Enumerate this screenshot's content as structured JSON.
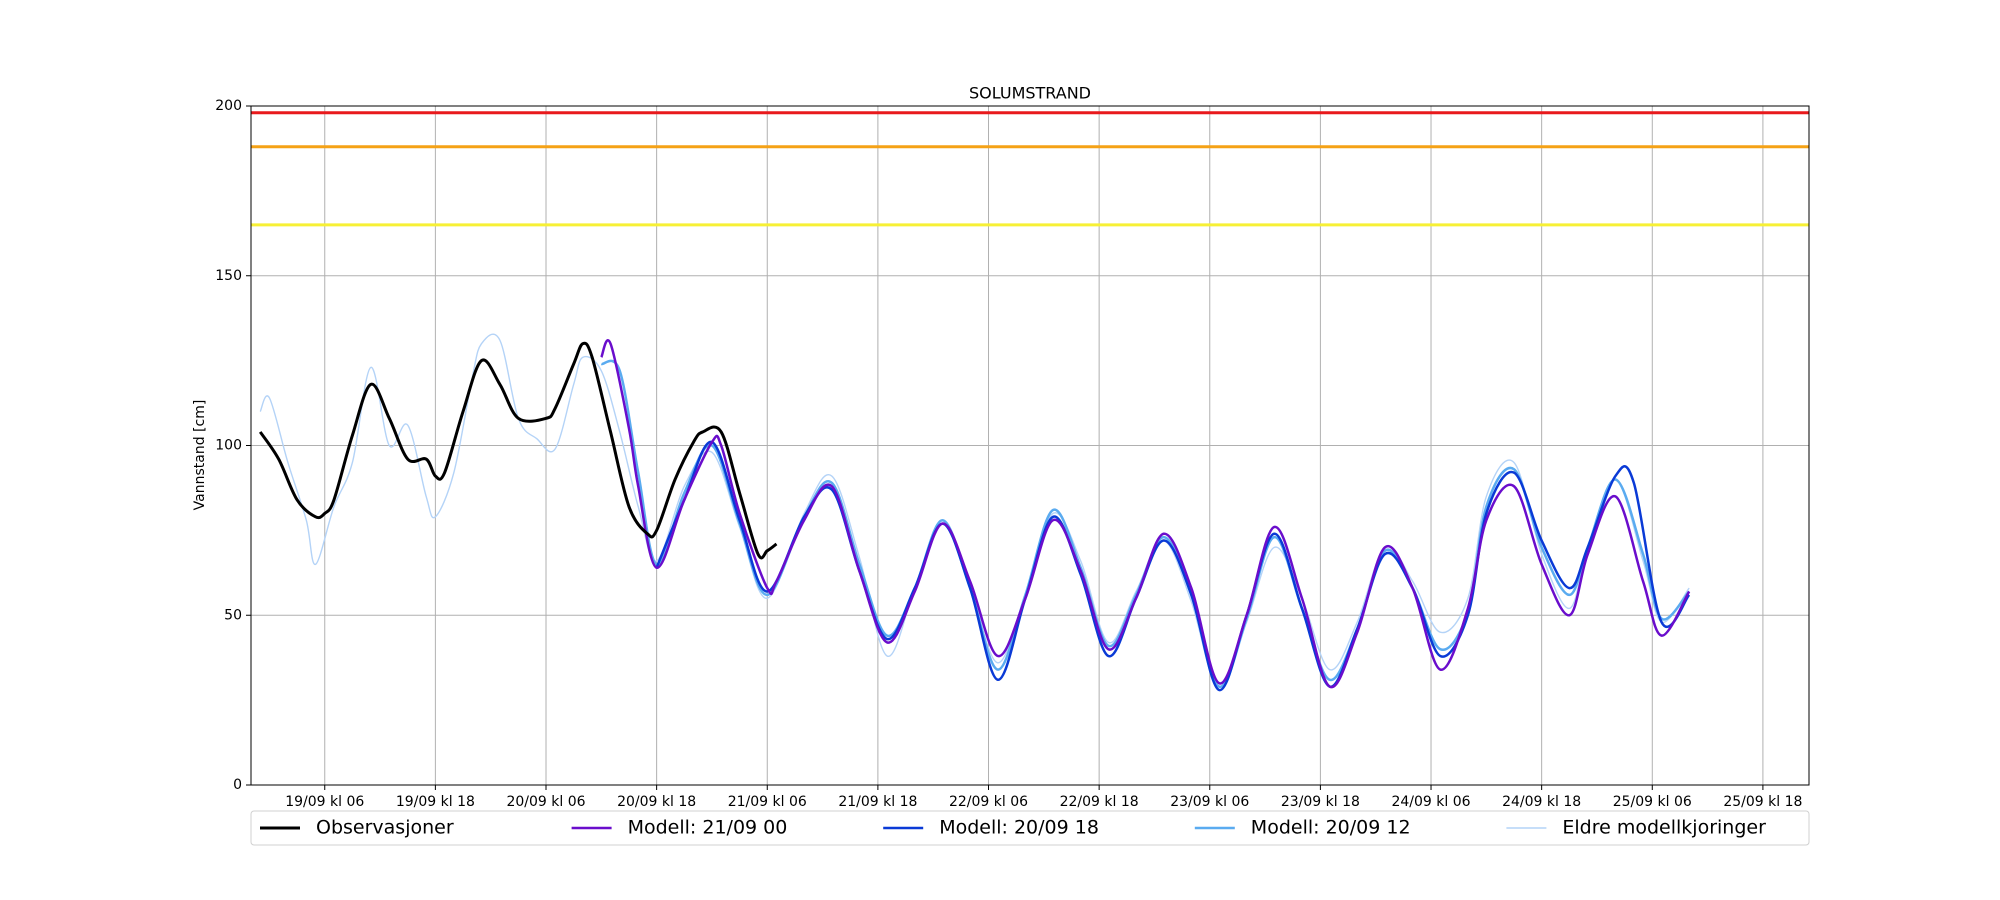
{
  "chart_data": {
    "type": "line",
    "title": "SOLUMSTRAND",
    "y_label": "Vannstand [cm]",
    "xlim": [
      "18/09 kl 22",
      "25/09 kl 23"
    ],
    "xticks": [
      "19/09 kl 06",
      "19/09 kl 18",
      "20/09 kl 06",
      "20/09 kl 18",
      "21/09 kl 06",
      "21/09 kl 18",
      "22/09 kl 06",
      "22/09 kl 18",
      "23/09 kl 06",
      "23/09 kl 18",
      "24/09 kl 06",
      "24/09 kl 18",
      "25/09 kl 06",
      "25/09 kl 18"
    ],
    "ylim": [
      0,
      200
    ],
    "yticks": [
      0,
      50,
      100,
      150,
      200
    ],
    "grid": true,
    "legend": "below",
    "thresholds": [
      {
        "value": 198,
        "color": "#e8191c"
      },
      {
        "value": 188,
        "color": "#f5a216"
      },
      {
        "value": 165,
        "color": "#f7f035"
      }
    ],
    "series": [
      {
        "name": "Observasjoner",
        "color": "#000000",
        "width": 3,
        "x": [
          "18/09 kl 23",
          "19/09 kl 01",
          "19/09 kl 03",
          "19/09 kl 05",
          "19/09 kl 06",
          "19/09 kl 07",
          "19/09 kl 09",
          "19/09 kl 11",
          "19/09 kl 13",
          "19/09 kl 15",
          "19/09 kl 17",
          "19/09 kl 18",
          "19/09 kl 19",
          "19/09 kl 21",
          "19/09 kl 23",
          "20/09 kl 01",
          "20/09 kl 03",
          "20/09 kl 06",
          "20/09 kl 07",
          "20/09 kl 09",
          "20/09 kl 10",
          "20/09 kl 11",
          "20/09 kl 13",
          "20/09 kl 15",
          "20/09 kl 17",
          "20/09 kl 18",
          "20/09 kl 20",
          "20/09 kl 22",
          "20/09 kl 23",
          "21/09 kl 01",
          "21/09 kl 03",
          "21/09 kl 05",
          "21/09 kl 06",
          "21/09 kl 07"
        ],
        "values": [
          104,
          96,
          84,
          79,
          80,
          84,
          103,
          118,
          108,
          96,
          96,
          91,
          92,
          110,
          125,
          118,
          108,
          108,
          111,
          124,
          130,
          126,
          104,
          82,
          74,
          75,
          90,
          101,
          104,
          104,
          86,
          68,
          69,
          71
        ]
      },
      {
        "name": "Modell: 21/09 00",
        "color": "#6a0dcc",
        "width": 2.5,
        "x": [
          "20/09 kl 12",
          "20/09 kl 13",
          "20/09 kl 15",
          "20/09 kl 16",
          "20/09 kl 18",
          "20/09 kl 21",
          "21/09 kl 00",
          "21/09 kl 01",
          "21/09 kl 03",
          "21/09 kl 06",
          "21/09 kl 07",
          "21/09 kl 10",
          "21/09 kl 13",
          "21/09 kl 16",
          "21/09 kl 19",
          "21/09 kl 22",
          "22/09 kl 01",
          "22/09 kl 04",
          "22/09 kl 07",
          "22/09 kl 10",
          "22/09 kl 13",
          "22/09 kl 16",
          "22/09 kl 19",
          "22/09 kl 22",
          "23/09 kl 01",
          "23/09 kl 04",
          "23/09 kl 07",
          "23/09 kl 10",
          "23/09 kl 13",
          "23/09 kl 16",
          "23/09 kl 19",
          "23/09 kl 22",
          "24/09 kl 01",
          "24/09 kl 04",
          "24/09 kl 07",
          "24/09 kl 10",
          "24/09 kl 12",
          "24/09 kl 15",
          "24/09 kl 18",
          "24/09 kl 21",
          "24/09 kl 23",
          "25/09 kl 02",
          "25/09 kl 05",
          "25/09 kl 07",
          "25/09 kl 10"
        ],
        "values": [
          126,
          130,
          105,
          88,
          64,
          84,
          101,
          100,
          80,
          58,
          60,
          78,
          88,
          63,
          42,
          57,
          77,
          60,
          38,
          55,
          78,
          63,
          40,
          55,
          74,
          58,
          30,
          50,
          76,
          55,
          29,
          45,
          70,
          58,
          34,
          52,
          78,
          88,
          65,
          50,
          68,
          85,
          60,
          44,
          57
        ]
      },
      {
        "name": "Modell: 20/09 18",
        "color": "#0a3ad6",
        "width": 2.5,
        "x": [
          "20/09 kl 18",
          "20/09 kl 21",
          "21/09 kl 00",
          "21/09 kl 03",
          "21/09 kl 06",
          "21/09 kl 10",
          "21/09 kl 13",
          "21/09 kl 16",
          "21/09 kl 19",
          "21/09 kl 22",
          "22/09 kl 01",
          "22/09 kl 04",
          "22/09 kl 07",
          "22/09 kl 10",
          "22/09 kl 13",
          "22/09 kl 16",
          "22/09 kl 19",
          "22/09 kl 22",
          "23/09 kl 01",
          "23/09 kl 04",
          "23/09 kl 07",
          "23/09 kl 10",
          "23/09 kl 13",
          "23/09 kl 16",
          "23/09 kl 19",
          "23/09 kl 22",
          "24/09 kl 01",
          "24/09 kl 04",
          "24/09 kl 07",
          "24/09 kl 10",
          "24/09 kl 12",
          "24/09 kl 15",
          "24/09 kl 18",
          "24/09 kl 21",
          "24/09 kl 23",
          "25/09 kl 02",
          "25/09 kl 04",
          "25/09 kl 07",
          "25/09 kl 10"
        ],
        "values": [
          64,
          84,
          101,
          78,
          57,
          79,
          87,
          63,
          43,
          58,
          77,
          58,
          31,
          55,
          79,
          62,
          38,
          55,
          72,
          56,
          28,
          50,
          74,
          52,
          29,
          46,
          68,
          58,
          38,
          50,
          80,
          92,
          72,
          58,
          70,
          91,
          89,
          48,
          56
        ]
      },
      {
        "name": "Modell: 20/09 12",
        "color": "#5aabf0",
        "width": 2.5,
        "x": [
          "20/09 kl 12",
          "20/09 kl 14",
          "20/09 kl 16",
          "20/09 kl 18",
          "20/09 kl 21",
          "21/09 kl 00",
          "21/09 kl 03",
          "21/09 kl 06",
          "21/09 kl 10",
          "21/09 kl 13",
          "21/09 kl 16",
          "21/09 kl 19",
          "21/09 kl 22",
          "22/09 kl 01",
          "22/09 kl 04",
          "22/09 kl 07",
          "22/09 kl 10",
          "22/09 kl 13",
          "22/09 kl 16",
          "22/09 kl 19",
          "22/09 kl 22",
          "23/09 kl 01",
          "23/09 kl 04",
          "23/09 kl 07",
          "23/09 kl 10",
          "23/09 kl 13",
          "23/09 kl 16",
          "23/09 kl 19",
          "23/09 kl 22",
          "24/09 kl 01",
          "24/09 kl 04",
          "24/09 kl 07",
          "24/09 kl 10",
          "24/09 kl 12",
          "24/09 kl 15",
          "24/09 kl 18",
          "24/09 kl 21",
          "24/09 kl 23",
          "25/09 kl 02",
          "25/09 kl 05",
          "25/09 kl 07",
          "25/09 kl 10"
        ],
        "values": [
          124,
          122,
          92,
          65,
          86,
          100,
          77,
          56,
          79,
          89,
          65,
          44,
          58,
          78,
          58,
          34,
          56,
          81,
          64,
          41,
          56,
          73,
          56,
          29,
          49,
          73,
          52,
          31,
          46,
          69,
          58,
          40,
          51,
          82,
          93,
          70,
          56,
          70,
          90,
          68,
          49,
          57
        ]
      },
      {
        "name": "Eldre modellkjoringer",
        "color": "#b4d3f7",
        "width": 1.4,
        "x": [
          "18/09 kl 23",
          "19/09 kl 00",
          "19/09 kl 02",
          "19/09 kl 04",
          "19/09 kl 05",
          "19/09 kl 07",
          "19/09 kl 09",
          "19/09 kl 11",
          "19/09 kl 13",
          "19/09 kl 15",
          "19/09 kl 17",
          "19/09 kl 18",
          "19/09 kl 20",
          "19/09 kl 22",
          "19/09 kl 23",
          "20/09 kl 01",
          "20/09 kl 03",
          "20/09 kl 05",
          "20/09 kl 07",
          "20/09 kl 09",
          "20/09 kl 10",
          "20/09 kl 12",
          "20/09 kl 14",
          "20/09 kl 16",
          "20/09 kl 18",
          "20/09 kl 21",
          "21/09 kl 00",
          "21/09 kl 03",
          "21/09 kl 06",
          "21/09 kl 10",
          "21/09 kl 13",
          "21/09 kl 16",
          "21/09 kl 19",
          "21/09 kl 22",
          "22/09 kl 01",
          "22/09 kl 04",
          "22/09 kl 07",
          "22/09 kl 10",
          "22/09 kl 13",
          "22/09 kl 16",
          "22/09 kl 19",
          "22/09 kl 22",
          "23/09 kl 01",
          "23/09 kl 04",
          "23/09 kl 07",
          "23/09 kl 10",
          "23/09 kl 13",
          "23/09 kl 16",
          "23/09 kl 19",
          "23/09 kl 22",
          "24/09 kl 01",
          "24/09 kl 04",
          "24/09 kl 07",
          "24/09 kl 10",
          "24/09 kl 12",
          "24/09 kl 15",
          "24/09 kl 18",
          "24/09 kl 21",
          "24/09 kl 23",
          "25/09 kl 02",
          "25/09 kl 05",
          "25/09 kl 07",
          "25/09 kl 10"
        ],
        "values": [
          110,
          114,
          95,
          78,
          65,
          82,
          95,
          123,
          100,
          106,
          85,
          79,
          92,
          120,
          130,
          131,
          108,
          102,
          99,
          118,
          126,
          122,
          104,
          82,
          66,
          88,
          98,
          76,
          55,
          80,
          91,
          67,
          38,
          58,
          77,
          58,
          36,
          56,
          80,
          66,
          42,
          57,
          72,
          54,
          28,
          48,
          70,
          55,
          34,
          48,
          70,
          60,
          45,
          55,
          85,
          95,
          68,
          52,
          70,
          90,
          66,
          48,
          58
        ]
      }
    ]
  }
}
